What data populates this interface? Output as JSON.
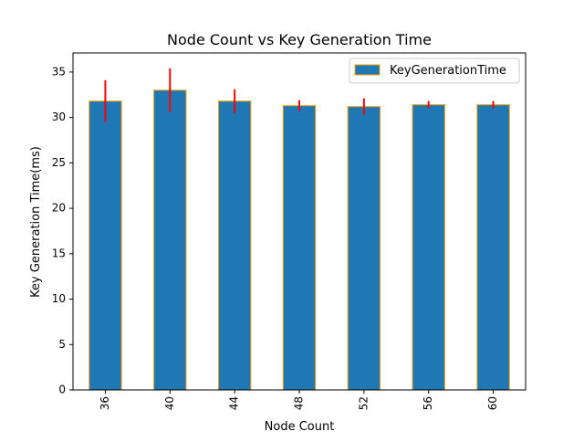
{
  "chart_data": {
    "type": "bar",
    "title": "Node Count vs Key Generation Time",
    "xlabel": "Node Count",
    "ylabel": "Key Generation Time(ms)",
    "categories": [
      "36",
      "40",
      "44",
      "48",
      "52",
      "56",
      "60"
    ],
    "series": [
      {
        "name": "KeyGenerationTime",
        "values": [
          31.8,
          33.0,
          31.8,
          31.3,
          31.2,
          31.4,
          31.4
        ],
        "errors": [
          2.3,
          2.4,
          1.3,
          0.6,
          0.9,
          0.4,
          0.4
        ]
      }
    ],
    "ylim": [
      0,
      37.1
    ],
    "yticks": [
      0,
      5,
      10,
      15,
      20,
      25,
      30,
      35
    ],
    "grid": false,
    "legend_position": "top-right",
    "colors": {
      "bar_fill": "#1f77b4",
      "bar_edge": "#ff9f00",
      "error_bar": "#ff0000",
      "axis": "#000000"
    }
  }
}
